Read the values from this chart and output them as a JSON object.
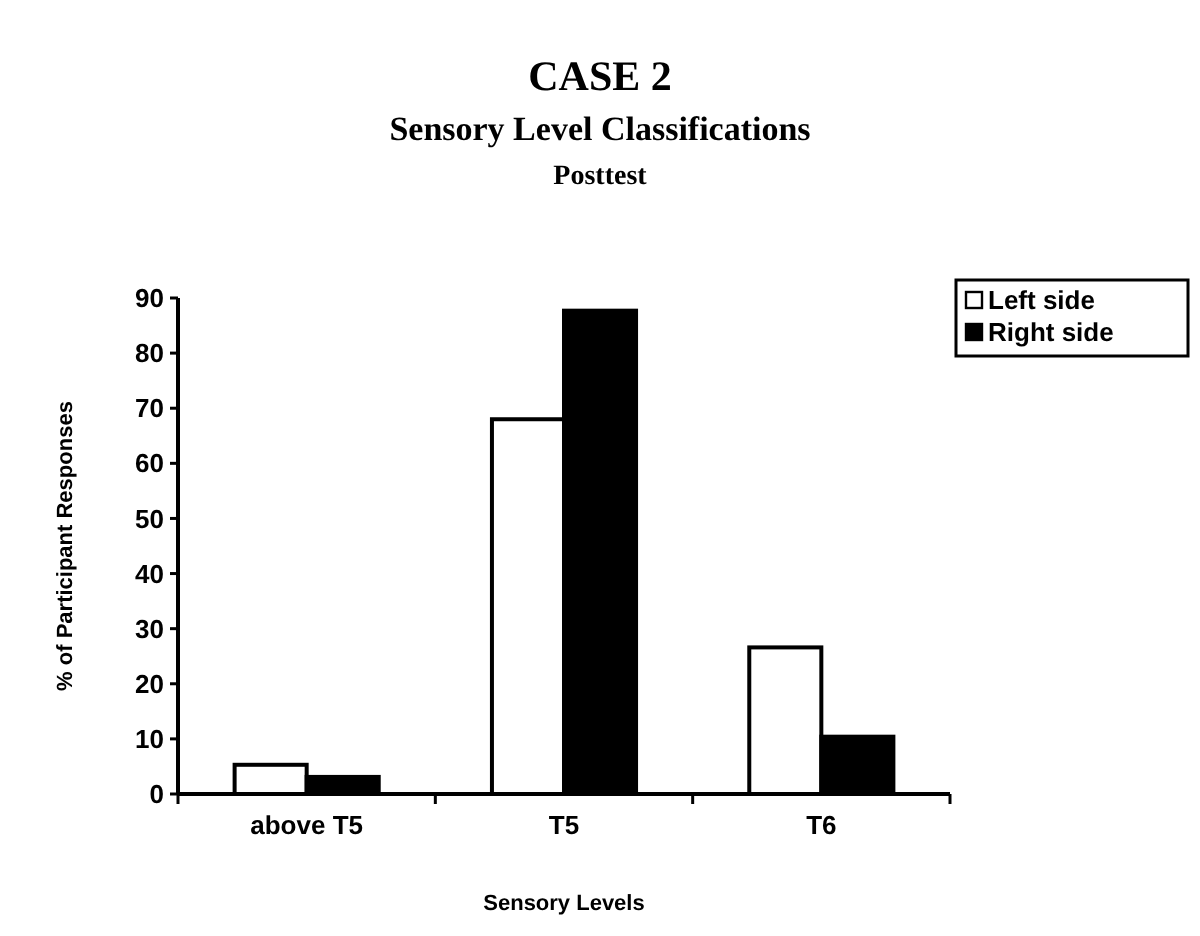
{
  "chart_data": {
    "type": "bar",
    "title": "CASE 2",
    "subtitle": "Sensory Level Classifications\nPosttest",
    "xlabel": "Sensory Levels",
    "ylabel": "% of Participant Responses",
    "categories": [
      "above T5",
      "T5",
      "T6"
    ],
    "series": [
      {
        "name": "Left side",
        "color": "#ffffff",
        "values": [
          5.3,
          68,
          26.6
        ]
      },
      {
        "name": "Right side",
        "color": "#000000",
        "values": [
          3.1,
          87.7,
          10.4
        ]
      }
    ],
    "ylim": [
      0,
      90
    ],
    "yticks": [
      0,
      10,
      20,
      30,
      40,
      50,
      60,
      70,
      80,
      90
    ],
    "grid": false,
    "legend": "top right"
  }
}
